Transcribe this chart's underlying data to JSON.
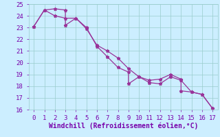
{
  "title": "",
  "xlabel": "Windchill (Refroidissement éolien,°C)",
  "ylabel": "",
  "xlim": [
    -0.5,
    17.5
  ],
  "ylim": [
    16,
    25
  ],
  "xticks": [
    0,
    1,
    2,
    3,
    4,
    5,
    6,
    7,
    8,
    9,
    10,
    11,
    12,
    13,
    14,
    15,
    16,
    17
  ],
  "yticks": [
    16,
    17,
    18,
    19,
    20,
    21,
    22,
    23,
    24,
    25
  ],
  "bg_color": "#cceeff",
  "line_color": "#993399",
  "grid_color": "#99cccc",
  "series1_x": [
    0,
    1,
    2,
    3,
    3,
    4,
    5,
    6,
    7,
    8,
    9,
    9,
    10,
    11,
    12,
    13,
    14,
    14,
    15,
    16,
    17
  ],
  "series1_y": [
    23.1,
    24.5,
    24.6,
    24.5,
    23.2,
    23.8,
    23.0,
    21.4,
    20.5,
    19.6,
    19.2,
    18.2,
    18.8,
    18.5,
    18.6,
    19.0,
    18.6,
    17.6,
    17.5,
    17.3,
    16.1
  ],
  "series2_x": [
    0,
    1,
    2,
    3,
    4,
    5,
    6,
    7,
    8,
    9,
    10,
    11,
    12,
    13,
    14,
    15,
    16,
    17
  ],
  "series2_y": [
    23.1,
    24.5,
    24.0,
    23.8,
    23.8,
    22.9,
    21.5,
    21.0,
    20.4,
    19.5,
    18.8,
    18.3,
    18.2,
    18.8,
    18.5,
    17.5,
    17.3,
    16.1
  ],
  "marker": "*",
  "marker_size": 3.5,
  "line_width": 0.9,
  "xlabel_fontsize": 7,
  "tick_fontsize": 6.5,
  "tick_color": "#7700aa",
  "xlabel_color": "#7700aa"
}
